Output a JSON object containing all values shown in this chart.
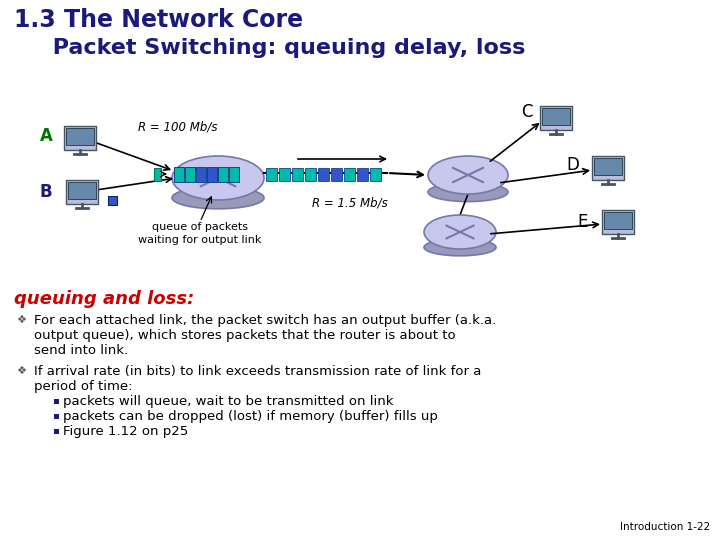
{
  "title_line1": "1.3 The Network Core",
  "title_line2": "     Packet Switching: queuing delay, loss",
  "title_color": "#1A1A7A",
  "bg_color": "#FFFFFF",
  "node_label_color_AB": "#007700",
  "node_label_color_BCDE": "#000000",
  "r100_label": "R = 100 Mb/s",
  "r15_label": "R = 1.5 Mb/s",
  "queue_label": "queue of packets\nwaiting for output link",
  "queuing_loss_title": "queuing and loss:",
  "queuing_loss_color": "#CC0000",
  "bullet1_l1": "For each attached link, the packet switch has an output buffer (a.k.a.",
  "bullet1_l2": "output queue), which stores packets that the router is about to",
  "bullet1_l3": "send into link.",
  "bullet2_l1": "If arrival rate (in bits) to link exceeds transmission rate of link for a",
  "bullet2_l2": "period of time:",
  "sub_bullet1": "packets will queue, wait to be transmitted on link",
  "sub_bullet2": "packets can be dropped (lost) if memory (buffer) fills up",
  "sub_bullet3": "Figure 1.12 on p25",
  "footnote": "Introduction 1-22",
  "teal": "#00BBAA",
  "dark_teal": "#009988",
  "blue_packet": "#3355CC",
  "router_fill": "#C8C8EE",
  "router_shadow": "#9999BB",
  "router_edge": "#7777AA",
  "link_color": "#000000",
  "text_color": "#000000"
}
